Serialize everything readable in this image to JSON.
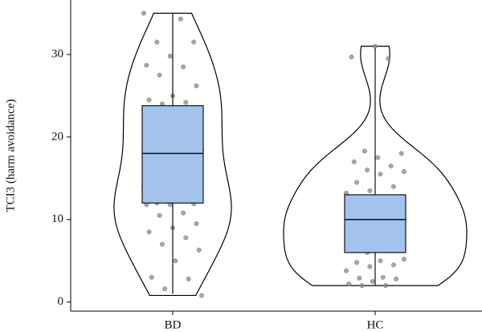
{
  "chart_data": {
    "type": "violin",
    "y_label": "TCI3 (harm avoidance)",
    "categories": [
      "BD",
      "HC"
    ],
    "ylim": [
      -1.1,
      36.6
    ],
    "yticks": [
      0,
      10,
      20,
      30
    ],
    "box_color": "#a3c3ec",
    "point_color": "#8a8a8a",
    "groups": [
      {
        "whisker_low": 1,
        "q1": 12,
        "median": 18,
        "q3": 23.8,
        "whisker_high": 35,
        "points": [
          35,
          34.3,
          31.5,
          31.5,
          29.8,
          28.7,
          28.5,
          27.5,
          26.2,
          25,
          24.5,
          24.2,
          24,
          23,
          22,
          21,
          20,
          19,
          18.5,
          18,
          17,
          16,
          15,
          14,
          13,
          12,
          11.9,
          11.8,
          11.8,
          10.8,
          10.5,
          9.5,
          9,
          8.5,
          7.8,
          7,
          6.3,
          5,
          3,
          2.8,
          1.6,
          0.8
        ]
      },
      {
        "whisker_low": 2,
        "q1": 6,
        "median": 10,
        "q3": 13,
        "whisker_high": 30.8,
        "points": [
          31,
          29.7,
          29.5,
          18.3,
          18,
          17.5,
          17,
          16.5,
          16,
          15.8,
          15.5,
          14.5,
          14,
          13.5,
          13.2,
          12.5,
          12,
          11.5,
          11,
          10.5,
          10.2,
          10,
          10,
          9.8,
          9.5,
          9,
          8.5,
          8,
          7.5,
          7,
          6.5,
          6,
          5.2,
          5,
          4.8,
          4.5,
          4.3,
          3.8,
          3,
          2.9,
          2.8,
          2.5,
          2.2,
          2,
          2
        ]
      }
    ]
  }
}
